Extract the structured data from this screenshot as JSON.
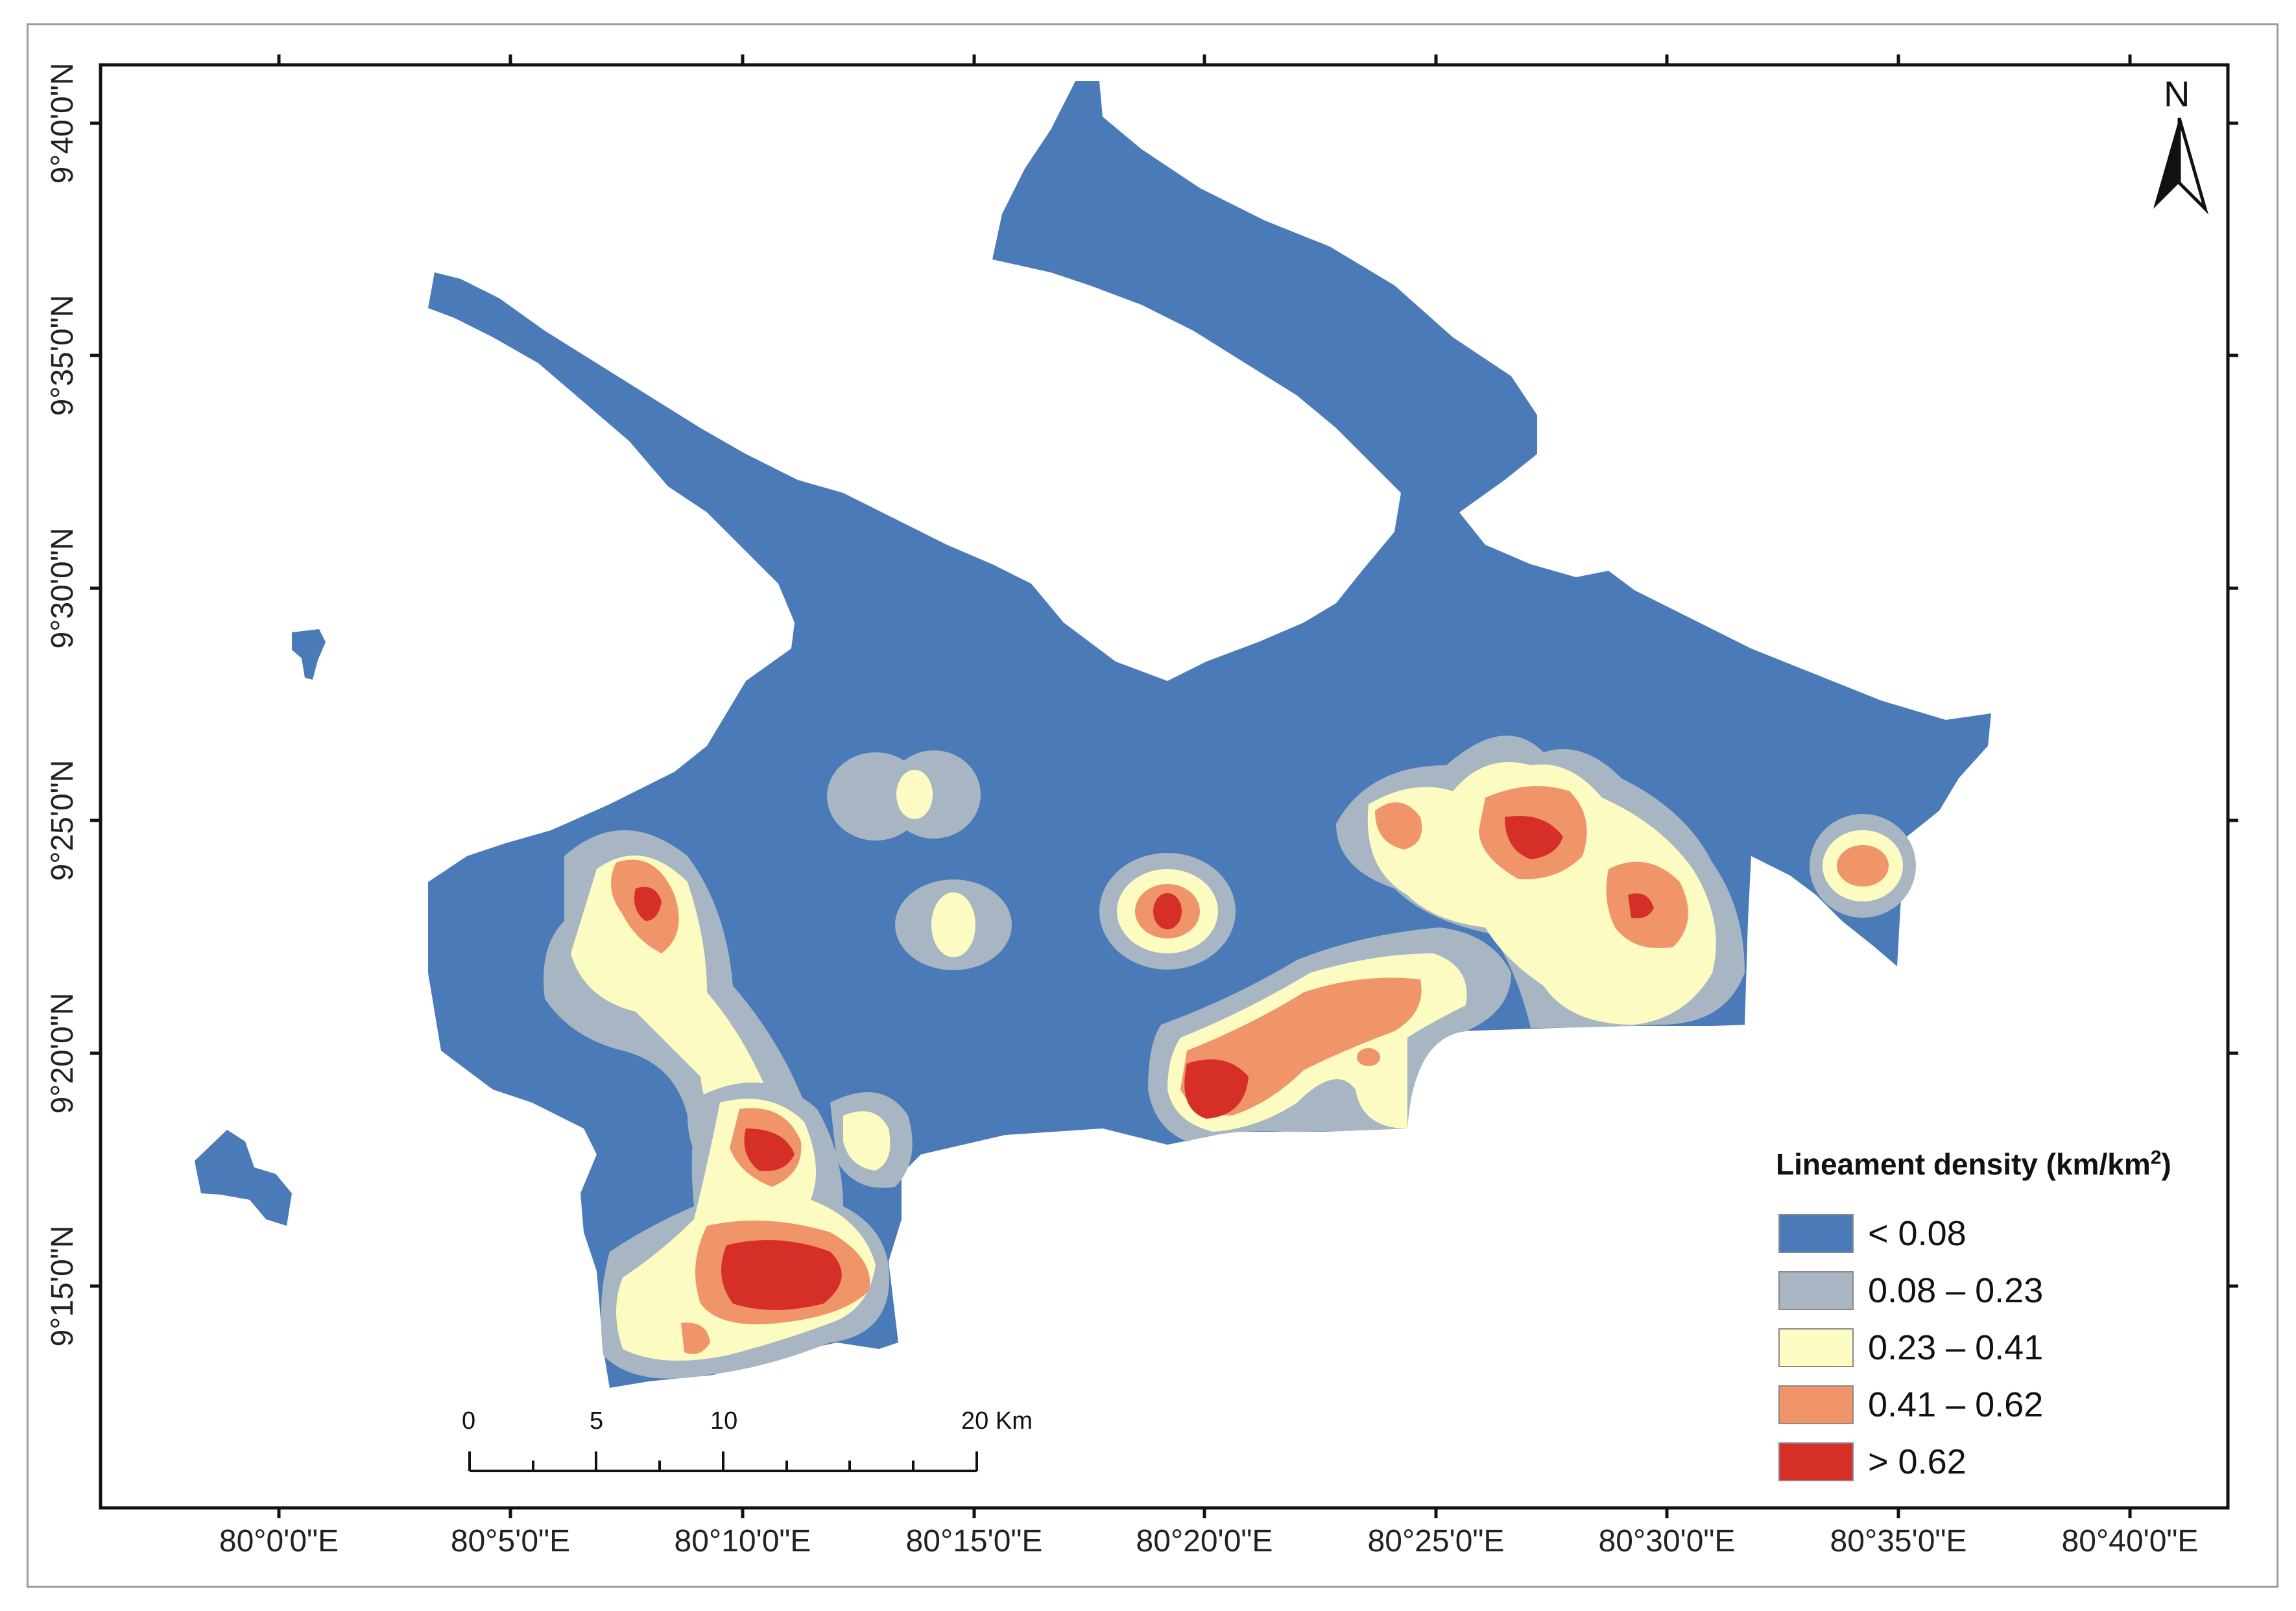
{
  "map": {
    "x_ticks": [
      "80°0'0\"E",
      "80°5'0\"E",
      "80°10'0\"E",
      "80°15'0\"E",
      "80°20'0\"E",
      "80°25'0\"E",
      "80°30'0\"E",
      "80°35'0\"E",
      "80°40'0\"E"
    ],
    "y_ticks": [
      "9°40'0\"N",
      "9°35'0\"N",
      "9°30'0\"N",
      "9°25'0\"N",
      "9°20'0\"N",
      "9°15'0\"N"
    ]
  },
  "legend": {
    "title_main": "Lineament density (km/km",
    "title_sup": "2",
    "title_end": ")",
    "classes": [
      {
        "label": "< 0.08",
        "color": "#4a7ab8"
      },
      {
        "label": "0.08 – 0.23",
        "color": "#a7b6c2"
      },
      {
        "label": "0.23 –  0.41",
        "color": "#fcfcc2"
      },
      {
        "label": "0.41 – 0.62",
        "color": "#f0956a"
      },
      {
        "label": "> 0.62",
        "color": "#d62f27"
      }
    ]
  },
  "scale_bar": {
    "labels": [
      "0",
      "5",
      "10",
      "20"
    ],
    "unit": "Km"
  },
  "north_arrow": {
    "label": "N"
  }
}
